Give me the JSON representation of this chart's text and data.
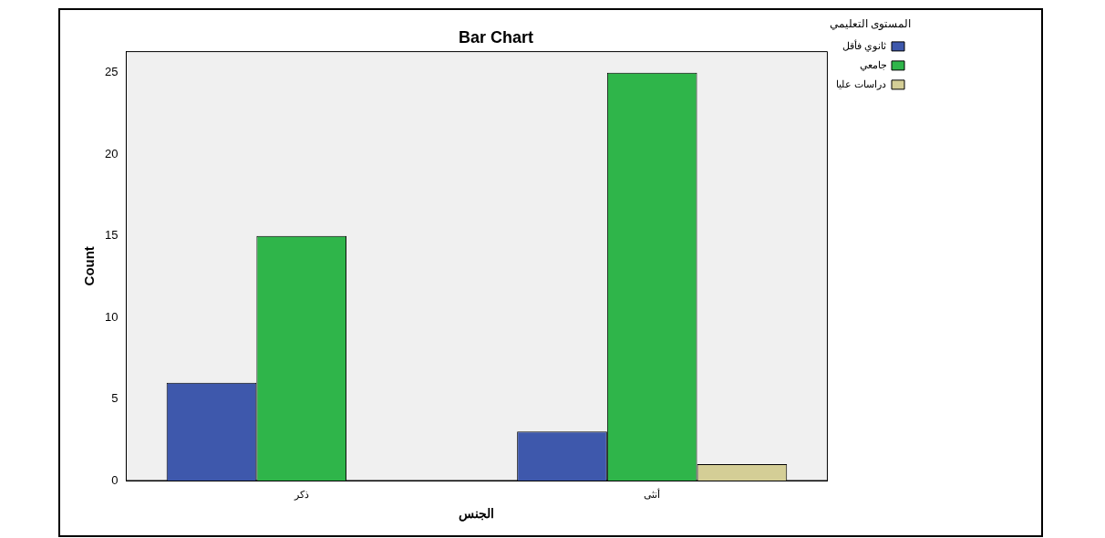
{
  "chart_data": {
    "type": "bar",
    "title": "Bar Chart",
    "xlabel": "الجنس",
    "ylabel": "Count",
    "legend_title": "المستوى التعليمي",
    "categories": [
      "ذكر",
      "أنثى"
    ],
    "series": [
      {
        "name": "ثانوي فأقل",
        "color": "#3e58ac",
        "values": [
          6,
          3
        ]
      },
      {
        "name": "جامعي",
        "color": "#2fb54a",
        "values": [
          15,
          25
        ]
      },
      {
        "name": "دراسات عليا",
        "color": "#d4ce96",
        "values": [
          null,
          1
        ]
      }
    ],
    "ylim": [
      0,
      26.3
    ],
    "yticks": [
      0,
      5,
      10,
      15,
      20,
      25
    ],
    "grid": false,
    "legend": "top right"
  }
}
